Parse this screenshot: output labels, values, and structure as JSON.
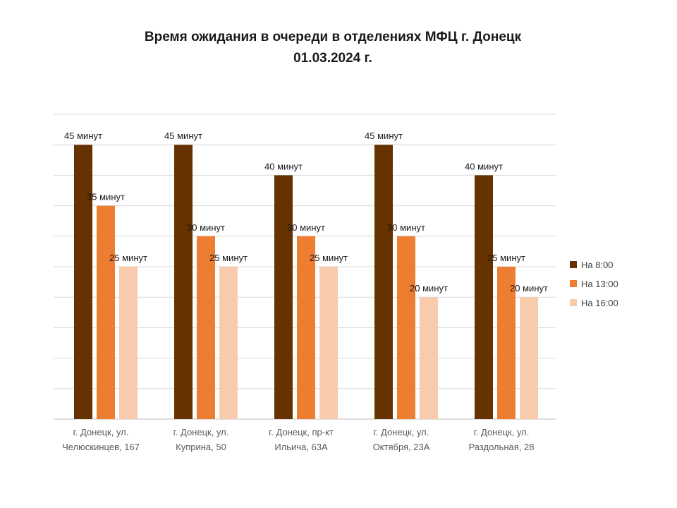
{
  "chart_data": {
    "type": "bar",
    "title": "Время ожидания в очереди в отделениях МФЦ г. Донецк",
    "subtitle": "01.03.2024 г.",
    "categories": [
      [
        "г. Донецк, ул.",
        "Челюскинцев, 167"
      ],
      [
        "г. Донецк, ул.",
        "Куприна, 50"
      ],
      [
        "г. Донецк, пр-кт",
        "Ильича, 63А"
      ],
      [
        "г. Донецк, ул.",
        "Октября, 23А"
      ],
      [
        "г. Донецк, ул.",
        "Раздольная, 28"
      ]
    ],
    "series": [
      {
        "name": "На 8:00",
        "color": "#663300",
        "values": [
          45,
          45,
          40,
          45,
          40
        ]
      },
      {
        "name": "На 13:00",
        "color": "#ed7d31",
        "values": [
          35,
          30,
          30,
          30,
          25
        ]
      },
      {
        "name": "На 16:00",
        "color": "#f8cbad",
        "values": [
          25,
          25,
          25,
          20,
          20
        ]
      }
    ],
    "data_label_suffix": " минут",
    "ylim": [
      0,
      50
    ],
    "ytick_step": 5,
    "grid": true,
    "legend_position": "right"
  }
}
